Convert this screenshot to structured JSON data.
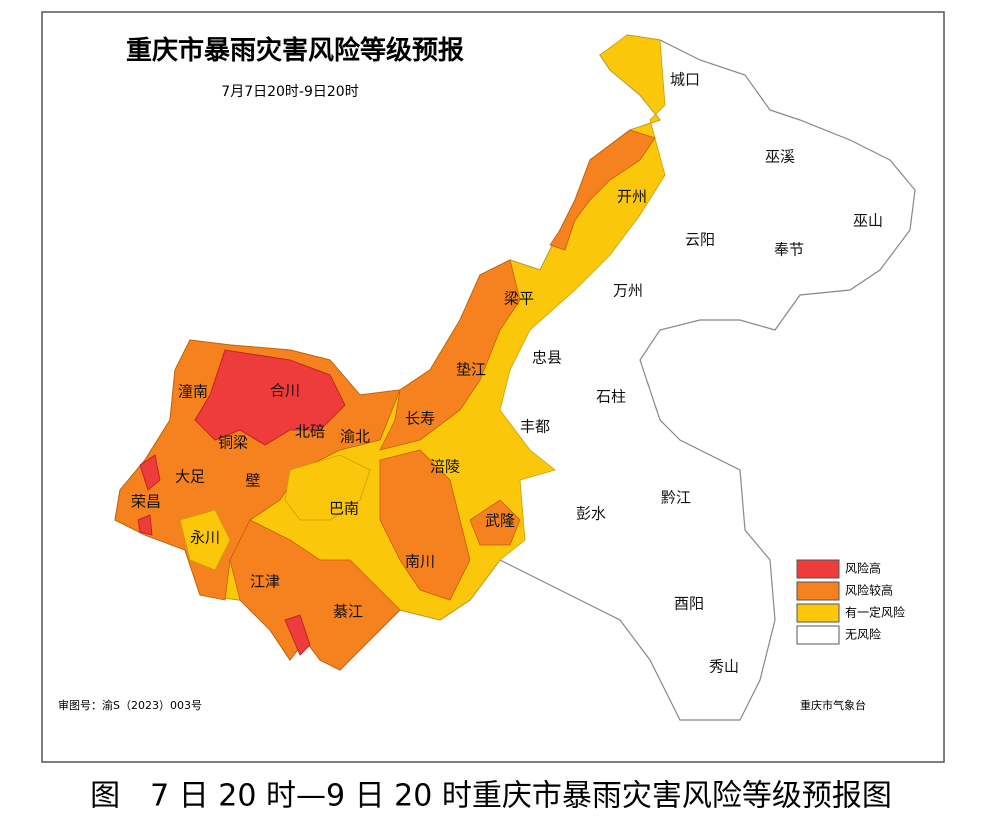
{
  "map": {
    "title": "重庆市暴雨灾害风险等级预报",
    "subtitle": "7月7日20时-9日20时",
    "districts": [
      "城口",
      "巫溪",
      "开州",
      "云阳",
      "奉节",
      "巫山",
      "梁平",
      "万州",
      "忠县",
      "垫江",
      "潼南",
      "合川",
      "石柱",
      "长寿",
      "北碚",
      "渝北",
      "铜梁",
      "丰都",
      "大足",
      "壁",
      "涪陵",
      "荣昌",
      "巴南",
      "彭水",
      "黔江",
      "武隆",
      "永川",
      "南川",
      "江津",
      "綦江",
      "酉阳",
      "秀山"
    ],
    "legend": [
      {
        "label": "风险高",
        "color": "#ee3b3b"
      },
      {
        "label": "风险较高",
        "color": "#f5821f"
      },
      {
        "label": "有一定风险",
        "color": "#fbc70a"
      },
      {
        "label": "无风险",
        "color": "#ffffff"
      }
    ],
    "approval": "审图号：渝S（2023）003号",
    "agency": "重庆市气象台"
  },
  "caption": "图　7 日 20 时—9 日 20 时重庆市暴雨灾害风险等级预报图"
}
